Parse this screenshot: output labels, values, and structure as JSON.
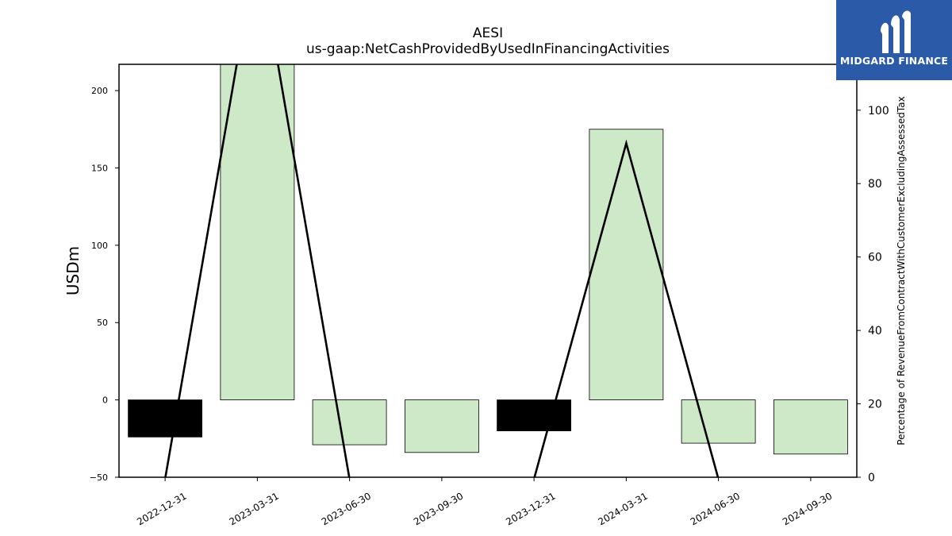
{
  "chart_data": {
    "type": "bar",
    "title": "AESI",
    "subtitle": "us-gaap:NetCashProvidedByUsedInFinancingActivities",
    "ylabel": "USDm",
    "y2label": "Percentage of RevenueFromContractWithCustomerExcludingAssessedTax",
    "categories": [
      "2022-12-31",
      "2023-03-31",
      "2023-06-30",
      "2023-09-30",
      "2023-12-31",
      "2024-03-31",
      "2024-06-30",
      "2024-09-30"
    ],
    "ylim": [
      -50,
      217
    ],
    "y2lim": [
      0,
      112.5
    ],
    "yticks": [
      -50,
      0,
      50,
      100,
      150,
      200
    ],
    "y2ticks": [
      0,
      20,
      40,
      60,
      80,
      100
    ],
    "series": [
      {
        "type": "bar",
        "values": [
          -24,
          217,
          -29,
          -34,
          -20,
          175,
          -28,
          -35
        ],
        "colors": [
          "#000000",
          "#cde9c7",
          "#cde9c7",
          "#cde9c7",
          "#000000",
          "#cde9c7",
          "#cde9c7",
          "#cde9c7"
        ]
      },
      {
        "type": "line",
        "axis": "right",
        "values": [
          -0.5,
          145,
          -0.5,
          null,
          -0.5,
          91,
          -0.5,
          null
        ],
        "color": "#000000"
      }
    ],
    "bar_fill_positive": "#cde9c7",
    "bar_fill_negative": "#000000"
  },
  "brand": {
    "name": "MIDGARD FINANCE",
    "color": "#2a5aa8"
  }
}
